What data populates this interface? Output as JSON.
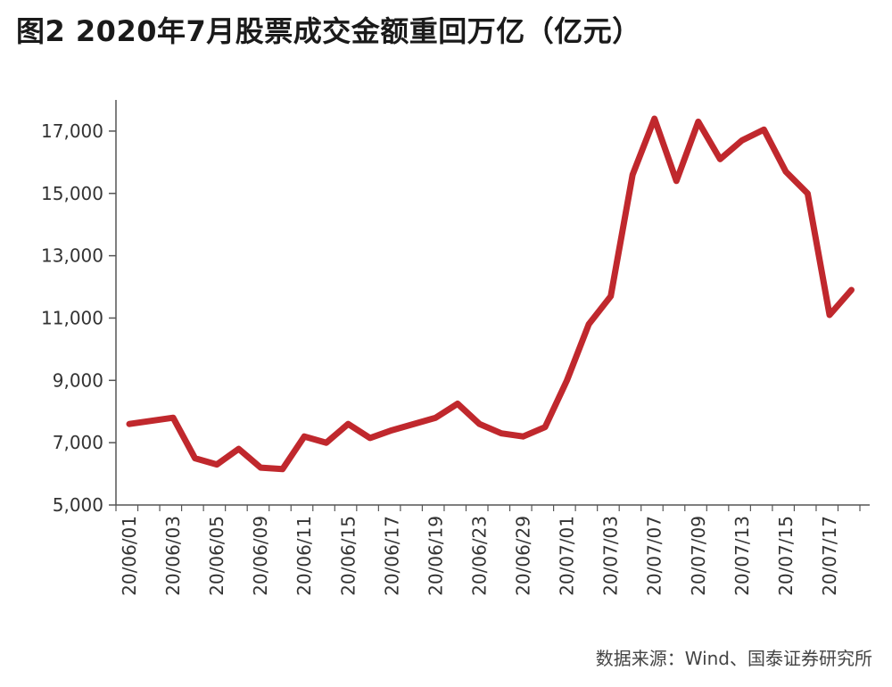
{
  "title": "图2  2020年7月股票成交金额重回万亿（亿元）",
  "source": "数据来源：Wind、国泰证券研究所",
  "colors": {
    "line": "#c0282d",
    "axis": "#555555",
    "text": "#333333"
  },
  "chart_data": {
    "type": "line",
    "title": "图2  2020年7月股票成交金额重回万亿（亿元）",
    "xlabel": "",
    "ylabel": "",
    "ylim": [
      5000,
      18000
    ],
    "yticks": [
      5000,
      7000,
      9000,
      11000,
      13000,
      15000,
      17000
    ],
    "ytick_labels": [
      "5,000",
      "7,000",
      "9,000",
      "11,000",
      "13,000",
      "15,000",
      "17,000"
    ],
    "grid": false,
    "x_tick_labels": [
      "20/06/01",
      "20/06/03",
      "20/06/05",
      "20/06/09",
      "20/06/11",
      "20/06/15",
      "20/06/17",
      "20/06/19",
      "20/06/23",
      "20/06/29",
      "20/07/01",
      "20/07/03",
      "20/07/07",
      "20/07/09",
      "20/07/13",
      "20/07/15",
      "20/07/17"
    ],
    "series": [
      {
        "values": [
          7600,
          7700,
          7800,
          6500,
          6300,
          6800,
          6200,
          6150,
          7200,
          7000,
          7600,
          7150,
          7400,
          7600,
          7800,
          8250,
          7600,
          7300,
          7200,
          7500,
          9000,
          10800,
          11700,
          15600,
          17400,
          15400,
          17300,
          16100,
          16700,
          17050,
          15700,
          15000,
          11100,
          11900
        ]
      }
    ]
  }
}
